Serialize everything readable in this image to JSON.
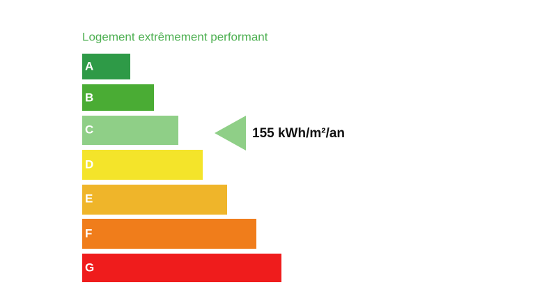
{
  "title": "Logement extrêmement performant",
  "classes": [
    {
      "label": "A"
    },
    {
      "label": "B"
    },
    {
      "label": "C"
    },
    {
      "label": "D"
    },
    {
      "label": "E"
    },
    {
      "label": "F"
    },
    {
      "label": "G"
    }
  ],
  "indicator": {
    "text": "155 kWh/m²/an"
  }
}
